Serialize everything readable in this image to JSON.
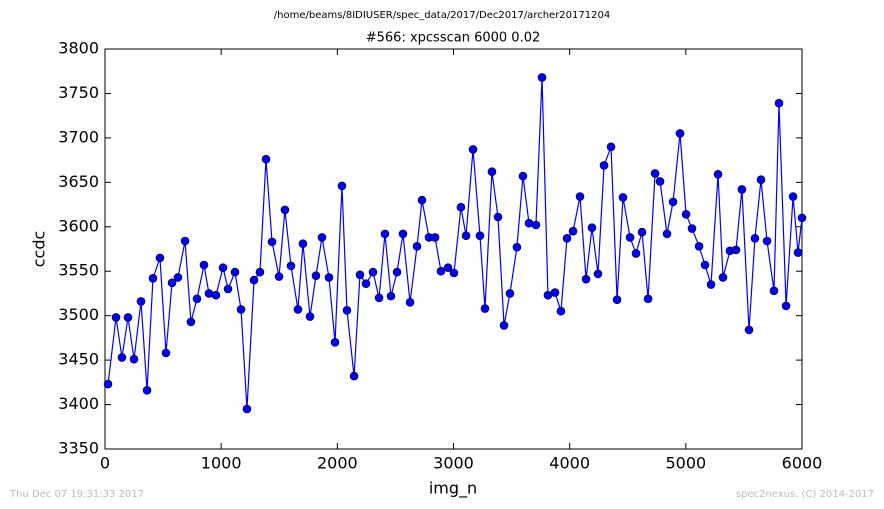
{
  "header": "/home/beams/8IDIUSER/spec_data/2017/Dec2017/archer20171204",
  "chart_data": {
    "type": "line",
    "title": "#566: xpcsscan 6000 0.02",
    "xlabel": "img_n",
    "ylabel": "ccdc",
    "x": [
      26,
      95,
      146,
      198,
      250,
      310,
      362,
      413,
      473,
      525,
      577,
      628,
      689,
      740,
      792,
      852,
      895,
      955,
      1016,
      1059,
      1119,
      1171,
      1222,
      1283,
      1334,
      1386,
      1438,
      1498,
      1549,
      1601,
      1661,
      1704,
      1765,
      1816,
      1868,
      1928,
      1980,
      2040,
      2083,
      2144,
      2195,
      2247,
      2307,
      2359,
      2410,
      2462,
      2514,
      2565,
      2626,
      2686,
      2729,
      2789,
      2841,
      2892,
      2953,
      3004,
      3064,
      3108,
      3168,
      3228,
      3271,
      3331,
      3383,
      3435,
      3486,
      3546,
      3598,
      3650,
      3710,
      3762,
      3813,
      3874,
      3925,
      3977,
      4029,
      4089,
      4141,
      4192,
      4244,
      4296,
      4356,
      4408,
      4459,
      4520,
      4571,
      4623,
      4675,
      4735,
      4778,
      4838,
      4890,
      4950,
      5002,
      5053,
      5114,
      5165,
      5217,
      5277,
      5320,
      5380,
      5432,
      5483,
      5544,
      5595,
      5647,
      5699,
      5759,
      5802,
      5863,
      5923,
      5966,
      6000
    ],
    "series": [
      {
        "color": "#0000ff",
        "values": [
          3423,
          3498,
          3453,
          3498,
          3451,
          3516,
          3416,
          3542,
          3565,
          3458,
          3537,
          3543,
          3584,
          3493,
          3519,
          3557,
          3525,
          3523,
          3554,
          3530,
          3549,
          3507,
          3395,
          3540,
          3549,
          3676,
          3583,
          3544,
          3619,
          3556,
          3507,
          3581,
          3499,
          3545,
          3588,
          3543,
          3470,
          3646,
          3506,
          3432,
          3546,
          3536,
          3549,
          3520,
          3592,
          3522,
          3549,
          3592,
          3515,
          3578,
          3630,
          3588,
          3588,
          3550,
          3554,
          3548,
          3622,
          3590,
          3687,
          3590,
          3508,
          3662,
          3611,
          3489,
          3525,
          3577,
          3657,
          3604,
          3602,
          3768,
          3523,
          3526,
          3505,
          3587,
          3595,
          3634,
          3541,
          3599,
          3547,
          3669,
          3690,
          3518,
          3633,
          3588,
          3570,
          3594,
          3519,
          3660,
          3651,
          3592,
          3628,
          3705,
          3614,
          3598,
          3578,
          3557,
          3535,
          3659,
          3543,
          3573,
          3574,
          3642,
          3484,
          3587,
          3653,
          3584,
          3528,
          3739,
          3511,
          3634,
          3571,
          3610
        ]
      }
    ],
    "xlim": [
      0,
      6000
    ],
    "xticks": [
      0,
      1000,
      2000,
      3000,
      4000,
      5000,
      6000
    ],
    "ylim": [
      3350,
      3800
    ],
    "yticks": [
      3350,
      3400,
      3450,
      3500,
      3550,
      3600,
      3650,
      3700,
      3750,
      3800
    ]
  },
  "footer": {
    "date": "Thu Dec 07 19:31:33 2017",
    "credit": "spec2nexus, (C) 2014-2017"
  }
}
